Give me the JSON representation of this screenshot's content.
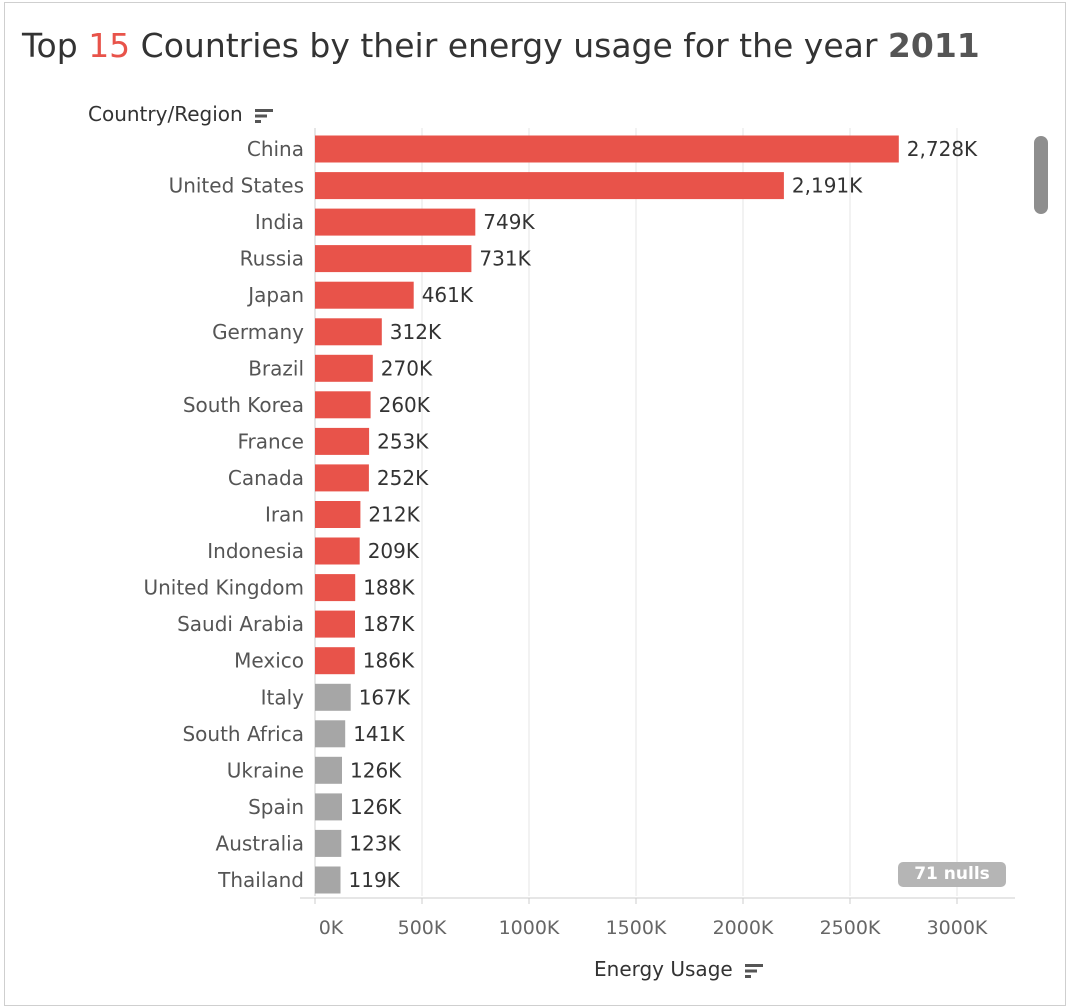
{
  "title": {
    "part1": "Top ",
    "highlight": "15",
    "part2": " Countries by their energy usage for the year ",
    "year": "2011"
  },
  "headers": {
    "rows": "Country/Region",
    "columns": "Energy Usage"
  },
  "colors": {
    "highlight": "#e8534a",
    "other": "#a6a6a6",
    "grid": "#e6e6e6",
    "axis": "#cccccc"
  },
  "nulls_label": "71 nulls",
  "chart_data": {
    "type": "bar",
    "orientation": "horizontal",
    "xlabel": "Energy Usage",
    "ylabel": "Country/Region",
    "xlim": [
      0,
      3000000
    ],
    "x_ticks": [
      0,
      500000,
      1000000,
      1500000,
      2000000,
      2500000,
      3000000
    ],
    "x_tick_labels": [
      "0K",
      "500K",
      "1000K",
      "1500K",
      "2000K",
      "2500K",
      "3000K"
    ],
    "grid": "vertical",
    "top_n_highlighted": 15,
    "categories": [
      "China",
      "United States",
      "India",
      "Russia",
      "Japan",
      "Germany",
      "Brazil",
      "South Korea",
      "France",
      "Canada",
      "Iran",
      "Indonesia",
      "United Kingdom",
      "Saudi Arabia",
      "Mexico",
      "Italy",
      "South Africa",
      "Ukraine",
      "Spain",
      "Australia",
      "Thailand"
    ],
    "values": [
      2728000,
      2191000,
      749000,
      731000,
      461000,
      312000,
      270000,
      260000,
      253000,
      252000,
      212000,
      209000,
      188000,
      187000,
      186000,
      167000,
      141000,
      126000,
      126000,
      123000,
      119000
    ],
    "value_labels": [
      "2,728K",
      "2,191K",
      "749K",
      "731K",
      "461K",
      "312K",
      "270K",
      "260K",
      "253K",
      "252K",
      "212K",
      "209K",
      "188K",
      "187K",
      "186K",
      "167K",
      "141K",
      "126K",
      "126K",
      "123K",
      "119K"
    ]
  }
}
